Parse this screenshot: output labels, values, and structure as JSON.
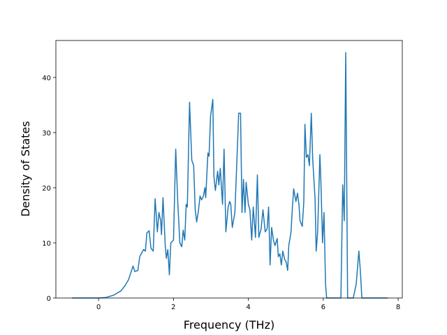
{
  "chart_data": {
    "type": "line",
    "xlabel": "Frequency (THz)",
    "ylabel": "Density of States",
    "x": [
      -0.71,
      0,
      0.2,
      0.4,
      0.6,
      0.7,
      0.8,
      0.92,
      0.97,
      1.05,
      1.1,
      1.2,
      1.25,
      1.29,
      1.35,
      1.4,
      1.46,
      1.51,
      1.57,
      1.61,
      1.66,
      1.68,
      1.72,
      1.78,
      1.81,
      1.85,
      1.89,
      1.93,
      2.0,
      2.06,
      2.11,
      2.17,
      2.22,
      2.26,
      2.3,
      2.34,
      2.37,
      2.43,
      2.49,
      2.54,
      2.58,
      2.62,
      2.67,
      2.71,
      2.75,
      2.8,
      2.84,
      2.86,
      2.92,
      2.95,
      2.99,
      3.05,
      3.08,
      3.12,
      3.18,
      3.21,
      3.25,
      3.31,
      3.35,
      3.4,
      3.46,
      3.5,
      3.53,
      3.57,
      3.64,
      3.7,
      3.74,
      3.79,
      3.83,
      3.87,
      3.91,
      3.94,
      4.0,
      4.04,
      4.09,
      4.13,
      4.19,
      4.24,
      4.28,
      4.34,
      4.39,
      4.45,
      4.5,
      4.54,
      4.58,
      4.62,
      4.67,
      4.71,
      4.77,
      4.8,
      4.84,
      4.88,
      4.92,
      4.97,
      5.01,
      5.05,
      5.08,
      5.14,
      5.18,
      5.21,
      5.27,
      5.31,
      5.35,
      5.38,
      5.44,
      5.48,
      5.51,
      5.55,
      5.59,
      5.63,
      5.68,
      5.72,
      5.78,
      5.81,
      5.85,
      5.91,
      5.94,
      5.98,
      6.02,
      6.06,
      6.09,
      6.47,
      6.52,
      6.56,
      6.6,
      6.65,
      6.8,
      6.88,
      6.95,
      6.99,
      7.03,
      7.72
    ],
    "series": [
      {
        "color": "#1f77b4",
        "values": [
          0,
          0,
          0.1,
          0.5,
          1.3,
          2.2,
          3.3,
          5.8,
          4.8,
          5,
          7.5,
          8.8,
          8.5,
          11.8,
          12.2,
          9,
          8.5,
          18,
          12,
          15.5,
          14,
          11.5,
          18.2,
          9.5,
          7.2,
          8.8,
          4.2,
          10,
          10.5,
          27,
          18,
          10,
          9.3,
          12.3,
          10.5,
          17,
          16.5,
          35.5,
          25,
          24,
          16,
          13.8,
          16,
          18.5,
          17.8,
          18.5,
          20,
          18.2,
          26.3,
          25.7,
          33,
          36,
          22,
          19.5,
          23,
          20.5,
          23.5,
          17,
          27,
          12,
          16.5,
          17.5,
          17,
          12.8,
          15.5,
          26,
          33.5,
          33.5,
          15.5,
          21.5,
          15.5,
          21,
          17,
          16,
          10.5,
          16.5,
          11,
          22.3,
          11,
          12.5,
          16,
          12,
          12.5,
          16.5,
          6,
          12.8,
          10.5,
          9.5,
          10.8,
          7.5,
          8,
          6,
          8.5,
          7,
          6.5,
          5,
          9.5,
          12,
          17,
          19.8,
          17.5,
          19,
          17,
          14,
          13,
          17.5,
          31.5,
          25.5,
          26,
          24,
          33.5,
          25,
          18,
          8.5,
          12,
          26,
          20.5,
          10,
          15.5,
          2.5,
          0,
          0,
          20.5,
          14,
          44.5,
          0,
          0,
          2.5,
          8.5,
          5,
          0,
          0
        ]
      }
    ],
    "xlim": [
      -1.14,
      8.11
    ],
    "ylim": [
      0,
      46.7
    ],
    "xticks": [
      0,
      2,
      4,
      6,
      8
    ],
    "yticks": [
      0,
      10,
      20,
      30,
      40
    ]
  }
}
